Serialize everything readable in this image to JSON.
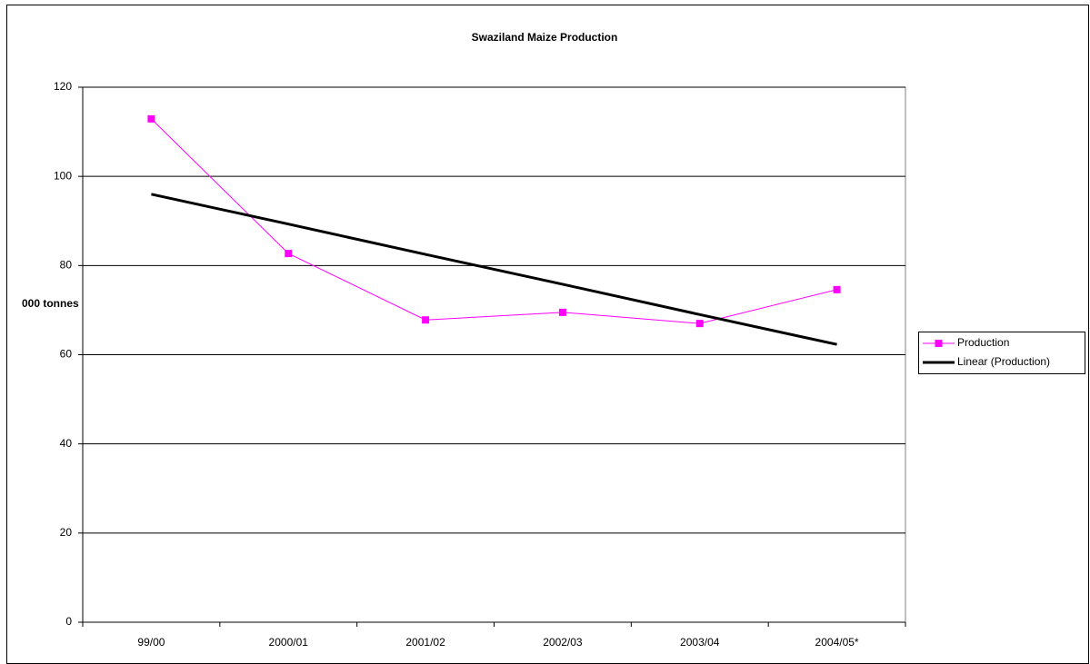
{
  "chart_data": {
    "type": "line",
    "title": "Swaziland Maize Production",
    "y_label": "000 tonnes",
    "categories": [
      "99/00",
      "2000/01",
      "2001/02",
      "2002/03",
      "2003/04",
      "2004/05*"
    ],
    "series": [
      {
        "name": "Production",
        "color": "#ff00ff",
        "marker": "square",
        "values": [
          112.9,
          82.7,
          67.8,
          69.5,
          67.0,
          74.6
        ]
      },
      {
        "name": "Linear (Production)",
        "color": "#000000",
        "values": [
          96.0,
          89.3,
          82.5,
          75.8,
          69.0,
          62.3
        ]
      }
    ],
    "ylim": [
      0,
      120
    ],
    "yticks": [
      0,
      20,
      40,
      60,
      80,
      100,
      120
    ],
    "grid": true,
    "legend": "right"
  }
}
